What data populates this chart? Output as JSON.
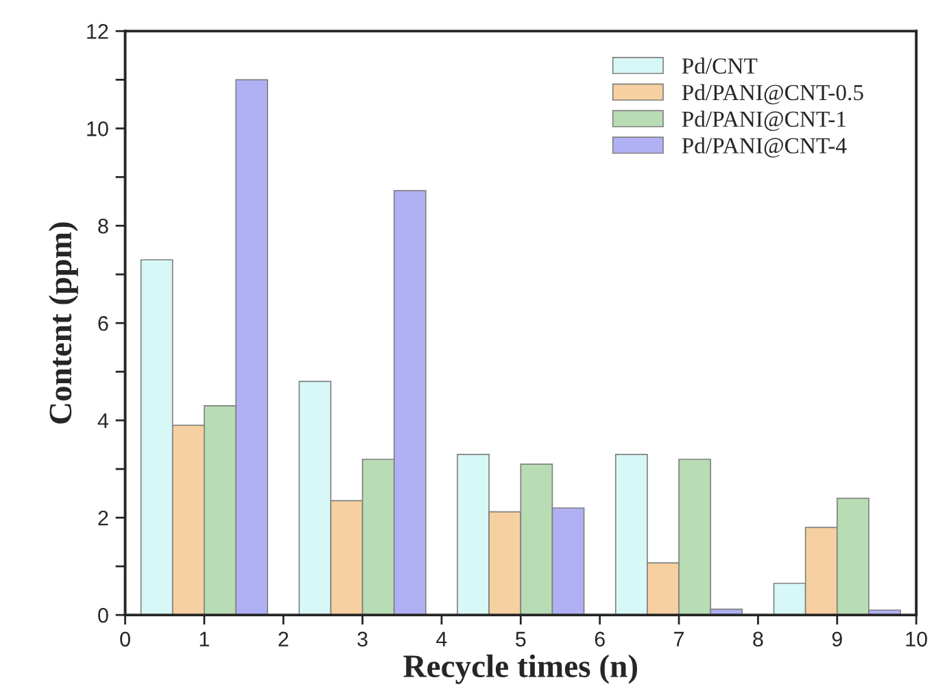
{
  "chart_data": {
    "type": "bar",
    "xlabel": "Recycle times (n)",
    "ylabel": "Content (ppm)",
    "xlim": [
      0,
      10
    ],
    "xticks": [
      0,
      1,
      2,
      3,
      4,
      5,
      6,
      7,
      8,
      9,
      10
    ],
    "ylim": [
      0,
      12
    ],
    "yticks": [
      0,
      {
        "value": 1,
        "label": null
      },
      2,
      {
        "value": 3,
        "label": null
      },
      4,
      {
        "value": 5,
        "label": null
      },
      6,
      {
        "value": 7,
        "label": null
      },
      8,
      {
        "value": 9,
        "label": null
      },
      10,
      {
        "value": 11,
        "label": null
      },
      12
    ],
    "legend": "top right",
    "grid": false,
    "series": [
      {
        "name": "Pd/CNT",
        "color": "#d8f8f8",
        "x": [
          0.4,
          2.4,
          4.4,
          6.4,
          8.4
        ],
        "values": [
          7.3,
          4.8,
          3.3,
          3.3,
          0.65
        ]
      },
      {
        "name": "Pd/PANI@CNT-0.5",
        "color": "#f6d0a0",
        "x": [
          0.8,
          2.8,
          4.8,
          6.8,
          8.8
        ],
        "values": [
          3.9,
          2.35,
          2.12,
          1.07,
          1.8
        ]
      },
      {
        "name": "Pd/PANI@CNT-1",
        "color": "#b8dcb4",
        "x": [
          1.2,
          3.2,
          5.2,
          7.2,
          9.2
        ],
        "values": [
          4.3,
          3.2,
          3.1,
          3.2,
          2.4
        ]
      },
      {
        "name": "Pd/PANI@CNT-4",
        "color": "#b0b0f4",
        "x": [
          1.6,
          3.6,
          5.6,
          7.6,
          9.6
        ],
        "values": [
          11.0,
          8.72,
          2.2,
          0.12,
          0.1
        ]
      }
    ]
  }
}
